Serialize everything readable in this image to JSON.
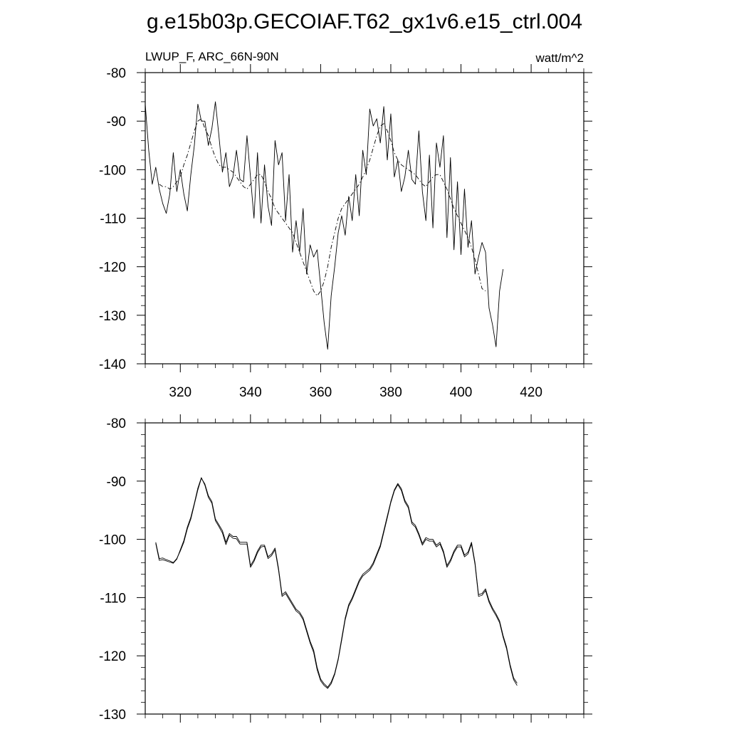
{
  "title": "g.e15b03p.GECOIAF.T62_gx1v6.e15_ctrl.004",
  "panels": {
    "top": {
      "left_label": "LWUP_F, ARC_66N-90N",
      "right_label": "watt/m^2"
    }
  },
  "chart_data": [
    {
      "type": "line",
      "xlim": [
        310,
        435
      ],
      "ylim": [
        -140,
        -80
      ],
      "x_ticks": [
        320,
        340,
        360,
        380,
        400,
        420
      ],
      "x_tick_labels": [
        "320",
        "340",
        "360",
        "380",
        "400",
        "420"
      ],
      "y_ticks": [
        -140,
        -130,
        -120,
        -110,
        -100,
        -90,
        -80
      ],
      "y_tick_labels": [
        "-140",
        "-130",
        "-120",
        "-110",
        "-100",
        "-90",
        "-80"
      ],
      "x_start": 310,
      "series": [
        {
          "style": "solid",
          "values": [
            -86.5,
            -96,
            -103,
            -99.5,
            -104,
            -107,
            -109,
            -105,
            -96.5,
            -104.5,
            -100,
            -105,
            -108.5,
            -101,
            -95,
            -86.5,
            -90,
            -90,
            -95,
            -91.5,
            -86,
            -93,
            -100.5,
            -96.5,
            -103.5,
            -101.5,
            -96,
            -102,
            -102.5,
            -93,
            -101.5,
            -110,
            -96.5,
            -111,
            -99,
            -107.5,
            -111.5,
            -94,
            -99,
            -96.5,
            -110.5,
            -101,
            -117,
            -110.5,
            -117,
            -108,
            -121.5,
            -115.5,
            -118,
            -116.5,
            -124,
            -131.5,
            -137,
            -126,
            -120,
            -113,
            -109.5,
            -113.5,
            -105.5,
            -110.5,
            -101,
            -109.5,
            -96,
            -101,
            -87.5,
            -91,
            -89.5,
            -94.5,
            -87,
            -98,
            -88.5,
            -101.5,
            -98,
            -104.5,
            -101.5,
            -96,
            -102,
            -103,
            -92,
            -104.5,
            -110.5,
            -97,
            -112,
            -94.5,
            -99.5,
            -93,
            -114,
            -97.5,
            -116.5,
            -102.5,
            -117.5,
            -104,
            -116,
            -110.5,
            -121.5,
            -118,
            -115,
            -117,
            -128.5,
            -132,
            -136.5,
            -125,
            -120.5
          ]
        },
        {
          "style": "dash",
          "values": [
            null,
            null,
            null,
            null,
            -103,
            -103.5,
            -103.5,
            -104,
            -103.5,
            -102.5,
            -101.5,
            -99,
            -97,
            -94.5,
            -92,
            -90,
            -89.5,
            -91.5,
            -93,
            -95.5,
            -97.5,
            -99,
            -99.5,
            -99.5,
            -100,
            -100.5,
            -101.5,
            -102.5,
            -103.5,
            -104,
            -103,
            -102,
            -101,
            -101,
            -102.5,
            -104.5,
            -106,
            -108,
            -109,
            -110,
            -111,
            -112,
            -113,
            -115,
            -117,
            -119,
            -121,
            -123,
            -125,
            -126,
            -125,
            -123,
            -120,
            -116,
            -113,
            -110,
            -108,
            -107,
            -106,
            -105,
            -104,
            -103,
            -101.5,
            -100,
            -98,
            -95.5,
            -93,
            -91,
            -90.5,
            -92,
            -94,
            -96.5,
            -98,
            -99,
            -99.5,
            -100,
            -100.5,
            -101,
            -102,
            -103,
            -103.5,
            -102.5,
            -101.5,
            -101,
            -101,
            -102.5,
            -104,
            -106,
            -108,
            -109.5,
            -111,
            -112.5,
            -114,
            -116,
            -118.5,
            -121.5,
            -124.5,
            -125
          ]
        }
      ]
    },
    {
      "type": "line",
      "xlim": [
        310,
        435
      ],
      "ylim": [
        -130,
        -80
      ],
      "x_ticks": [
        320,
        340,
        360,
        380,
        400,
        420
      ],
      "x_tick_labels": [],
      "y_ticks": [
        -130,
        -120,
        -110,
        -100,
        -90,
        -80
      ],
      "y_tick_labels": [
        "-130",
        "-120",
        "-110",
        "-100",
        "-90",
        "-80"
      ],
      "x_start": 313,
      "series": [
        {
          "style": "solid",
          "values": [
            -100.5,
            -103.3,
            -103.2,
            -103.5,
            -103.7,
            -104,
            -103.3,
            -102,
            -100.5,
            -98.2,
            -96.5,
            -94,
            -91.5,
            -89.5,
            -90.5,
            -92.5,
            -93.5,
            -96.5,
            -97.5,
            -98.5,
            -100.5,
            -99,
            -99.5,
            -99.5,
            -100.5,
            -100.5,
            -100.5,
            -104.5,
            -103.5,
            -102,
            -101,
            -101,
            -103,
            -102.5,
            -101.5,
            -105,
            -109.5,
            -109,
            -110,
            -111,
            -112,
            -112.5,
            -113.5,
            -115.5,
            -117.5,
            -119,
            -122,
            -124,
            -124.8,
            -125.4,
            -124.5,
            -123,
            -120.5,
            -117,
            -113.5,
            -111.2,
            -110,
            -108.5,
            -107,
            -106,
            -105.5,
            -105,
            -104,
            -102.5,
            -101,
            -98.5,
            -96,
            -93.5,
            -91.5,
            -90.4,
            -91.3,
            -93.3,
            -94.3,
            -97,
            -97.6,
            -99,
            -100.7,
            -99.7,
            -100,
            -100,
            -101,
            -100.5,
            -102,
            -104.5,
            -103.5,
            -102,
            -101,
            -101,
            -102.7,
            -102.2,
            -100.5,
            -104,
            -109.5,
            -109.3,
            -108.5,
            -110.5,
            -111.8,
            -112.8,
            -114,
            -116.5,
            -118.5,
            -121.5,
            -123.8,
            -124.7
          ]
        },
        {
          "style": "solid",
          "values": [
            -100.7,
            -103.6,
            -103.5,
            -103.7,
            -103.9,
            -104.1,
            -103.4,
            -101.8,
            -100.2,
            -97.9,
            -96.2,
            -93.8,
            -91.2,
            -89.4,
            -90.7,
            -92.8,
            -93.8,
            -96.8,
            -97.8,
            -98.9,
            -100.9,
            -99.3,
            -99.8,
            -99.9,
            -100.8,
            -100.8,
            -100.8,
            -104.8,
            -103.8,
            -102.3,
            -101.3,
            -101.2,
            -103.3,
            -102.8,
            -101.8,
            -105.3,
            -109.8,
            -109.3,
            -110.3,
            -111.3,
            -112.3,
            -112.8,
            -113.8,
            -115.8,
            -117.8,
            -119.4,
            -122.4,
            -124.3,
            -125.1,
            -125.6,
            -124.8,
            -123.2,
            -120.7,
            -117.3,
            -113.8,
            -111.5,
            -110.3,
            -108.8,
            -107.3,
            -106.3,
            -105.8,
            -105.3,
            -104.3,
            -102.8,
            -101.3,
            -98.8,
            -96.3,
            -93.7,
            -91.7,
            -90.6,
            -91.6,
            -93.6,
            -94.6,
            -97.3,
            -97.9,
            -99.3,
            -101,
            -100,
            -100.3,
            -100.3,
            -101.3,
            -100.8,
            -102.3,
            -104.8,
            -103.8,
            -102.3,
            -101.3,
            -101.3,
            -103,
            -102.5,
            -100.8,
            -104.3,
            -109.8,
            -109.6,
            -108.8,
            -110.8,
            -112.1,
            -113.1,
            -114.3,
            -116.8,
            -118.8,
            -121.8,
            -124.1,
            -125.1
          ]
        }
      ]
    }
  ]
}
